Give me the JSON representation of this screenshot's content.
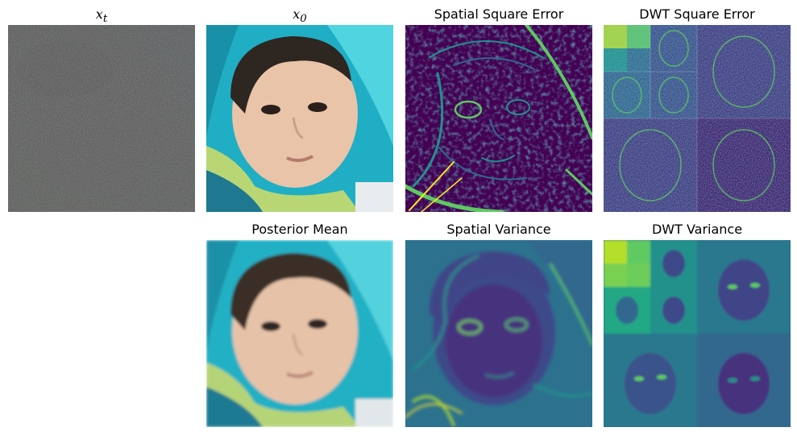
{
  "figure": {
    "panels": [
      {
        "title_symbol": "x",
        "title_subscript": "t",
        "image": "noisy-input-image"
      },
      {
        "title_symbol": "x",
        "title_subscript": "0",
        "image": "clean-baby-photo"
      },
      {
        "title": "Spatial Square Error",
        "image": "spatial-square-error-heatmap"
      },
      {
        "title": "DWT Square Error",
        "image": "dwt-square-error-heatmap"
      },
      {
        "title": "Posterior Mean",
        "image": "posterior-mean-photo"
      },
      {
        "title": "Spatial Variance",
        "image": "spatial-variance-heatmap"
      },
      {
        "title": "DWT Variance",
        "image": "dwt-variance-heatmap"
      }
    ],
    "colors": {
      "viridis_dark": "#440154",
      "viridis_blue": "#31688e",
      "viridis_teal": "#21918c",
      "viridis_green": "#5ec962",
      "viridis_yellow": "#fde725",
      "cyan_background": "#22b8cc",
      "skin": "#e8c3a8"
    }
  }
}
